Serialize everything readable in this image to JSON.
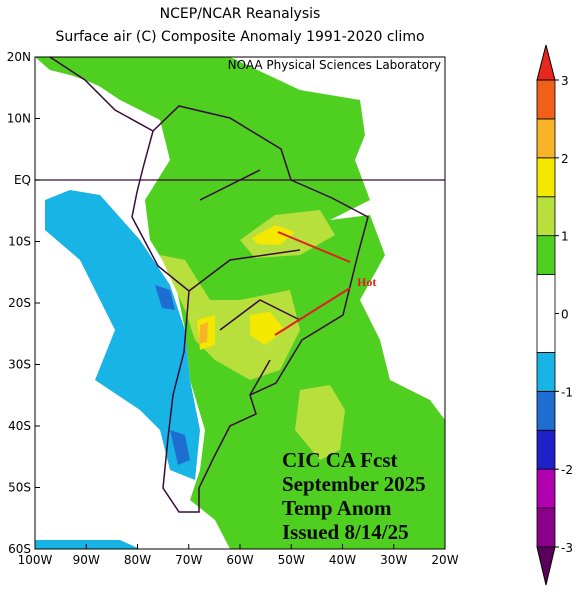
{
  "header": {
    "title": "NCEP/NCAR Reanalysis",
    "subtitle": "Surface air (C) Composite Anomaly 1991-2020 climo",
    "credit": "NOAA Physical Sciences Laboratory"
  },
  "map": {
    "lat_labels": [
      "20N",
      "10N",
      "EQ",
      "10S",
      "20S",
      "30S",
      "40S",
      "50S",
      "60S"
    ],
    "lon_labels": [
      "100W",
      "90W",
      "80W",
      "70W",
      "60W",
      "50W",
      "40W",
      "30W",
      "20W"
    ],
    "annotation": "Hot",
    "forecast_note": [
      "CIC CA Fcst",
      "September 2025",
      "Temp Anom",
      "Issued 8/14/25"
    ]
  },
  "colorbar": {
    "ticks": [
      3,
      2,
      1,
      0,
      -1,
      -2,
      -3
    ],
    "lim": [
      -3,
      3
    ],
    "colors": [
      "#8b008b",
      "#b000b0",
      "#2020c8",
      "#1e6ed2",
      "#19b4e6",
      "#ffffff",
      "#4fcf20",
      "#b8e03c",
      "#f5e800",
      "#f8b428",
      "#f06018"
    ],
    "under_color": "#5a005a",
    "over_color": "#e8281e"
  }
}
